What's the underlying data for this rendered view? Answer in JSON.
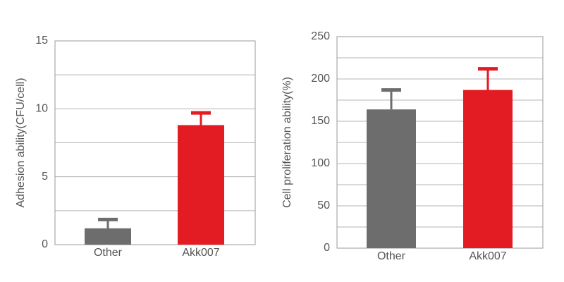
{
  "chart_data": [
    {
      "type": "bar",
      "ylabel": "Adhesion ability(CFU/cell)",
      "categories": [
        "Other",
        "Akk007"
      ],
      "values": [
        1.2,
        8.8
      ],
      "errors": [
        0.65,
        0.9
      ],
      "colors": [
        "#6d6d6d",
        "#e31b23"
      ],
      "ylim": [
        0,
        15
      ],
      "yticks": [
        0,
        5,
        10,
        15
      ],
      "minor_yticks": [
        2.5,
        7.5,
        12.5
      ],
      "grid": true
    },
    {
      "type": "bar",
      "ylabel": "Cell proliferation ability(%)",
      "categories": [
        "Other",
        "Akk007"
      ],
      "values": [
        164,
        187
      ],
      "errors": [
        23,
        25
      ],
      "colors": [
        "#6d6d6d",
        "#e31b23"
      ],
      "ylim": [
        0,
        250
      ],
      "yticks": [
        0,
        50,
        100,
        150,
        200,
        250
      ],
      "minor_yticks": [
        25,
        75,
        125,
        175,
        225
      ],
      "grid": true
    }
  ]
}
